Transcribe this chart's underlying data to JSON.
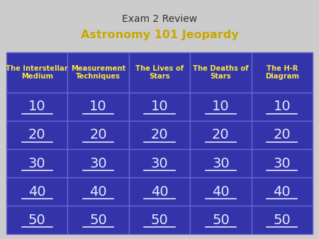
{
  "title_line1": "Exam 2 Review",
  "title_line2": "Astronomy 101 Jeopardy",
  "title_color": "#333333",
  "title_bold_color": "#c8a800",
  "background_color": "#3333aa",
  "cell_border_color": "#6666cc",
  "outer_bg": "#cccccc",
  "categories": [
    "The Interstellar\nMedium",
    "Measurement\nTechniques",
    "The Lives of\nStars",
    "The Deaths of\nStars",
    "The H-R\nDiagram"
  ],
  "values": [
    10,
    20,
    30,
    40,
    50
  ],
  "category_text_color": "#f5e642",
  "value_text_color": "#e8e8ff",
  "num_cols": 5,
  "num_rows": 5
}
